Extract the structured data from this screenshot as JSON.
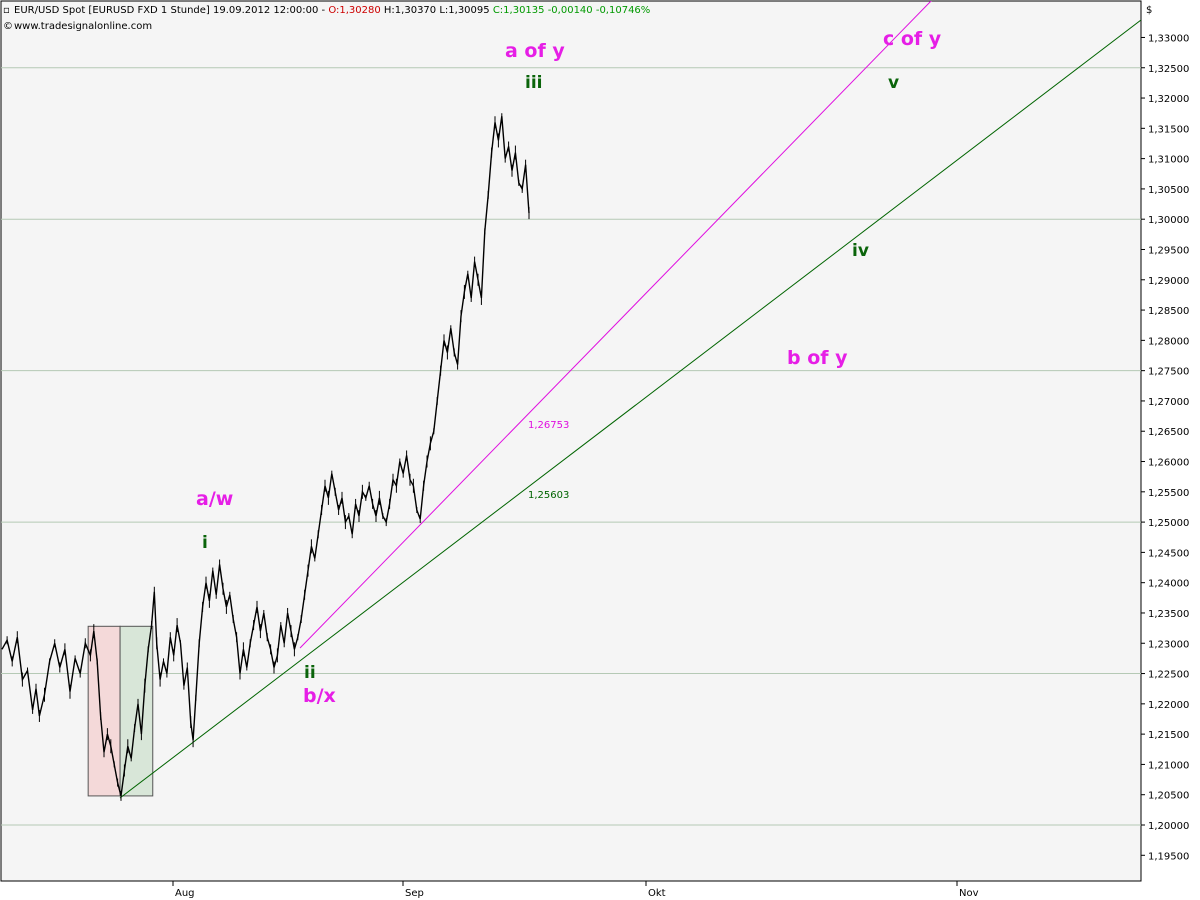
{
  "header": {
    "title": "EUR/USD Spot [EURUSD FXD  1 Stunde] 19.09.2012 12:00:00 - ",
    "open": "O:1,30280",
    "hl": " H:1,30370 L:1,30095 ",
    "change": "C:1,30135 -0,00140 -0,10746%",
    "website": "www.tradesignalonline.com",
    "currency_symbol": "$"
  },
  "chart_data": {
    "type": "line",
    "title": "EUR/USD Spot [EURUSD FXD  1 Stunde] 19.09.2012 12:00:00",
    "ylim": [
      1.19,
      1.3345
    ],
    "y_ticks": [
      "1,19500",
      "1,20000",
      "1,20500",
      "1,21000",
      "1,21500",
      "1,22000",
      "1,22500",
      "1,23000",
      "1,23500",
      "1,24000",
      "1,24500",
      "1,25000",
      "1,25500",
      "1,26000",
      "1,26500",
      "1,27000",
      "1,27500",
      "1,28000",
      "1,28500",
      "1,29000",
      "1,29500",
      "1,30000",
      "1,30500",
      "1,31000",
      "1,31500",
      "1,32000",
      "1,32500",
      "1,33000"
    ],
    "x_ticks": [
      "Aug",
      "Sep",
      "Okt",
      "Nov"
    ],
    "grid_y": [
      "1,20000",
      "1,22500",
      "1,25000",
      "1,27500",
      "1,30000",
      "1,32500"
    ],
    "price_series": {
      "name": "EUR/USD",
      "points": [
        [
          0,
          1.229
        ],
        [
          1.5,
          1.2305
        ],
        [
          3,
          1.227
        ],
        [
          4.5,
          1.231
        ],
        [
          6,
          1.224
        ],
        [
          7.5,
          1.2255
        ],
        [
          9,
          1.219
        ],
        [
          10,
          1.2225
        ],
        [
          11,
          1.218
        ],
        [
          12.5,
          1.2215
        ],
        [
          14,
          1.227
        ],
        [
          15.5,
          1.23
        ],
        [
          17,
          1.226
        ],
        [
          18.5,
          1.229
        ],
        [
          20,
          1.222
        ],
        [
          21.5,
          1.2275
        ],
        [
          23,
          1.225
        ],
        [
          24.5,
          1.23
        ],
        [
          26,
          1.228
        ],
        [
          27,
          1.232
        ],
        [
          28,
          1.227
        ],
        [
          29,
          1.218
        ],
        [
          30,
          1.212
        ],
        [
          31,
          1.215
        ],
        [
          32,
          1.213
        ],
        [
          33,
          1.21
        ],
        [
          34,
          1.207
        ],
        [
          35,
          1.2048
        ],
        [
          36,
          1.209
        ],
        [
          37,
          1.213
        ],
        [
          38,
          1.211
        ],
        [
          39,
          1.216
        ],
        [
          40,
          1.22
        ],
        [
          41,
          1.215
        ],
        [
          42,
          1.223
        ],
        [
          43,
          1.229
        ],
        [
          44,
          1.233
        ],
        [
          44.8,
          1.2385
        ],
        [
          45.5,
          1.23
        ],
        [
          46.5,
          1.224
        ],
        [
          47.5,
          1.227
        ],
        [
          48.5,
          1.225
        ],
        [
          49.5,
          1.231
        ],
        [
          50.5,
          1.228
        ],
        [
          51.5,
          1.233
        ],
        [
          52.5,
          1.23
        ],
        [
          53.5,
          1.223
        ],
        [
          54.5,
          1.226
        ],
        [
          55.5,
          1.217
        ],
        [
          56.2,
          1.214
        ],
        [
          57,
          1.221
        ],
        [
          58,
          1.23
        ],
        [
          59,
          1.236
        ],
        [
          60,
          1.24
        ],
        [
          61,
          1.237
        ],
        [
          62,
          1.242
        ],
        [
          63,
          1.238
        ],
        [
          64,
          1.243
        ],
        [
          65,
          1.239
        ],
        [
          66,
          1.236
        ],
        [
          67,
          1.238
        ],
        [
          68,
          1.234
        ],
        [
          69,
          1.231
        ],
        [
          70,
          1.225
        ],
        [
          71,
          1.229
        ],
        [
          72,
          1.226
        ],
        [
          73,
          1.23
        ],
        [
          74,
          1.233
        ],
        [
          75,
          1.236
        ],
        [
          76,
          1.232
        ],
        [
          77,
          1.235
        ],
        [
          78,
          1.231
        ],
        [
          79,
          1.229
        ],
        [
          80,
          1.226
        ],
        [
          81,
          1.228
        ],
        [
          82,
          1.233
        ],
        [
          83,
          1.23
        ],
        [
          84,
          1.235
        ],
        [
          85,
          1.232
        ],
        [
          86,
          1.229
        ],
        [
          87,
          1.231
        ],
        [
          88,
          1.234
        ],
        [
          89,
          1.238
        ],
        [
          90,
          1.242
        ],
        [
          91,
          1.246
        ],
        [
          92,
          1.244
        ],
        [
          93,
          1.248
        ],
        [
          94,
          1.252
        ],
        [
          95,
          1.256
        ],
        [
          96,
          1.254
        ],
        [
          97,
          1.258
        ],
        [
          98,
          1.255
        ],
        [
          99,
          1.252
        ],
        [
          100,
          1.254
        ],
        [
          101,
          1.25
        ],
        [
          102,
          1.251
        ],
        [
          103,
          1.248
        ],
        [
          104,
          1.253
        ],
        [
          105,
          1.251
        ],
        [
          106,
          1.255
        ],
        [
          107,
          1.254
        ],
        [
          108,
          1.256
        ],
        [
          109,
          1.253
        ],
        [
          110,
          1.251
        ],
        [
          111,
          1.254
        ],
        [
          112,
          1.251
        ],
        [
          113,
          1.25
        ],
        [
          114,
          1.253
        ],
        [
          115,
          1.257
        ],
        [
          116,
          1.256
        ],
        [
          117,
          1.26
        ],
        [
          118,
          1.258
        ],
        [
          119,
          1.261
        ],
        [
          120,
          1.257
        ],
        [
          121,
          1.256
        ],
        [
          122,
          1.252
        ],
        [
          123,
          1.2505
        ],
        [
          124,
          1.256
        ],
        [
          125,
          1.26
        ],
        [
          126,
          1.263
        ],
        [
          127,
          1.265
        ],
        [
          128,
          1.27
        ],
        [
          129,
          1.275
        ],
        [
          130,
          1.28
        ],
        [
          131,
          1.278
        ],
        [
          132,
          1.282
        ],
        [
          133,
          1.278
        ],
        [
          134,
          1.276
        ],
        [
          135,
          1.284
        ],
        [
          136,
          1.288
        ],
        [
          137,
          1.291
        ],
        [
          138,
          1.287
        ],
        [
          139,
          1.293
        ],
        [
          140,
          1.29
        ],
        [
          141,
          1.287
        ],
        [
          142,
          1.298
        ],
        [
          143,
          1.304
        ],
        [
          144,
          1.311
        ],
        [
          145,
          1.316
        ],
        [
          146,
          1.313
        ],
        [
          147,
          1.317
        ],
        [
          148,
          1.31
        ],
        [
          149,
          1.312
        ],
        [
          150,
          1.308
        ],
        [
          151,
          1.311
        ],
        [
          152,
          1.306
        ],
        [
          153,
          1.305
        ],
        [
          154,
          1.309
        ],
        [
          155,
          1.301
        ]
      ]
    },
    "trendlines": [
      {
        "name": "magenta-trendline",
        "color": "#e00ee0",
        "points": [
          [
            82,
            1.227
          ],
          [
            184,
            1.332
          ]
        ]
      },
      {
        "name": "green-trendline",
        "color": "#006400",
        "points": [
          [
            35,
            1.2048
          ],
          [
            256,
            1.333
          ]
        ]
      }
    ],
    "levels": [
      {
        "label": "1,26753",
        "color": "#e00ee0"
      },
      {
        "label": "1,25603",
        "color": "#006400"
      }
    ],
    "wave_labels": [
      {
        "text": "a of y",
        "color": "#e61ee6"
      },
      {
        "text": "iii",
        "color": "#0a640a"
      },
      {
        "text": "c of y",
        "color": "#e61ee6"
      },
      {
        "text": "v",
        "color": "#0a640a"
      },
      {
        "text": "iv",
        "color": "#0a640a"
      },
      {
        "text": "b of y",
        "color": "#e61ee6"
      },
      {
        "text": "a/w",
        "color": "#e61ee6"
      },
      {
        "text": "i",
        "color": "#0a640a"
      },
      {
        "text": "ii",
        "color": "#0a640a"
      },
      {
        "text": "b/x",
        "color": "#e61ee6"
      }
    ],
    "shaded_boxes": [
      {
        "name": "red-shaded-box",
        "color": "#f4d9d9",
        "y_range": [
          1.2048,
          1.2328
        ]
      },
      {
        "name": "green-shaded-box",
        "color": "#d8e6d8",
        "y_range": [
          1.2048,
          1.2328
        ]
      }
    ],
    "colors": {
      "background": "#f5f5f5",
      "price": "#000000",
      "grid": "#b5c9b5",
      "header_open": "#cc0000",
      "header_change": "#009900"
    }
  }
}
